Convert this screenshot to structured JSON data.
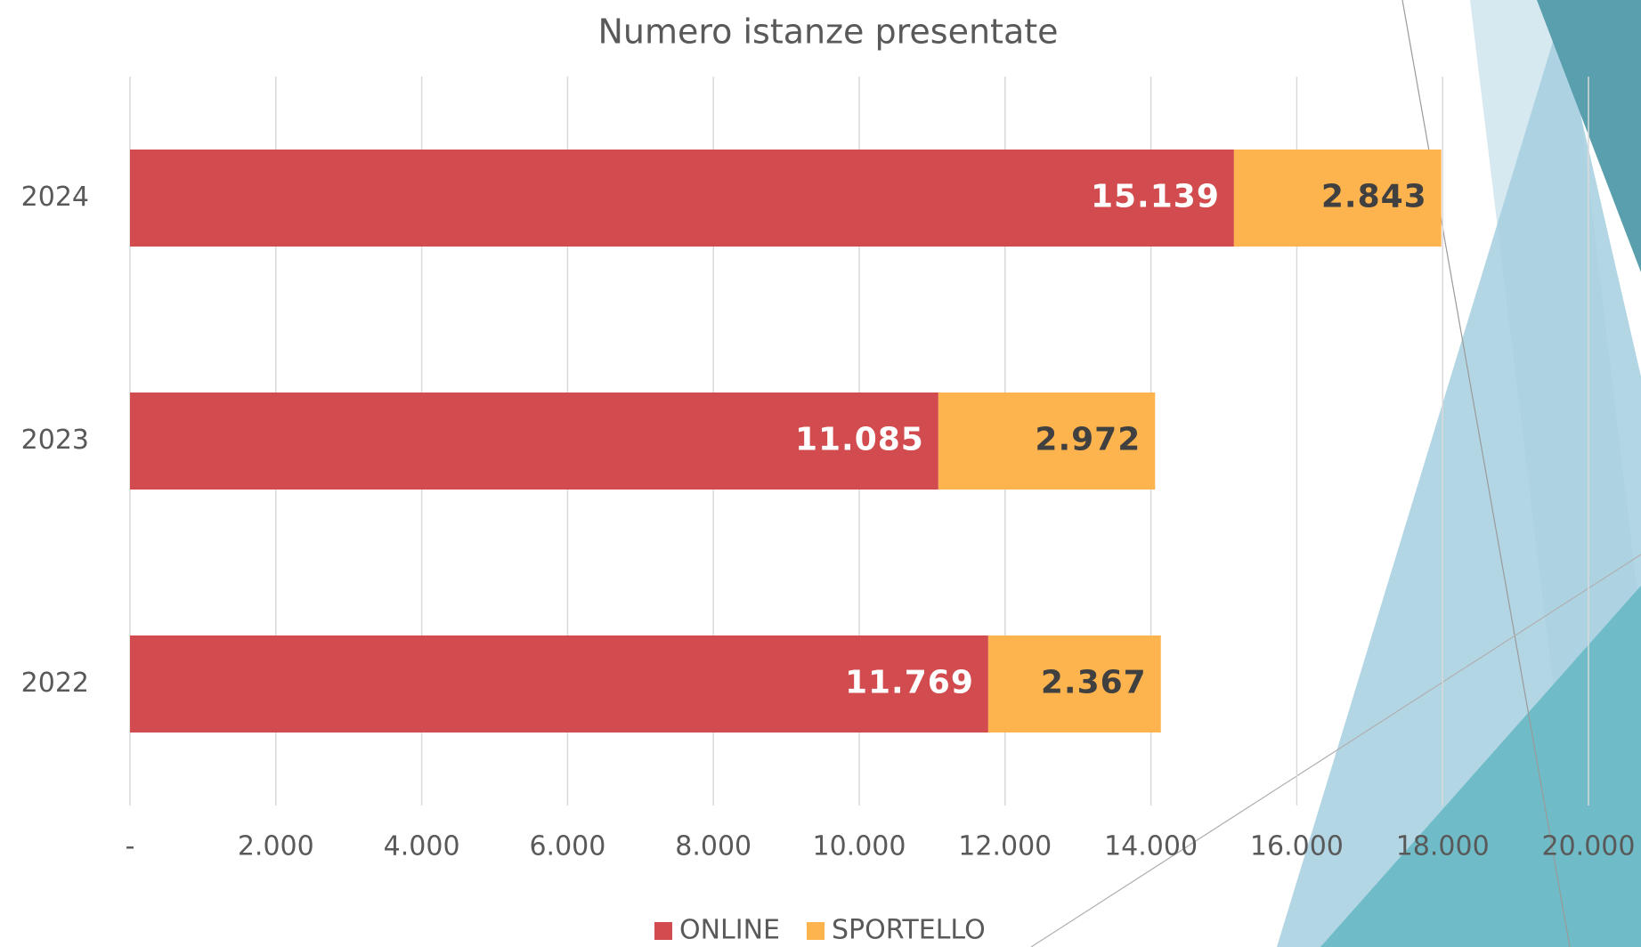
{
  "chart_data": {
    "type": "stacked-bar-horizontal",
    "title": "Numero istanze presentate",
    "categories": [
      "2024",
      "2023",
      "2022"
    ],
    "series": [
      {
        "name": "ONLINE",
        "color": "#d24b4e",
        "values": [
          15139,
          11085,
          11769
        ],
        "value_labels": [
          "15.139",
          "11.085",
          "11.769"
        ]
      },
      {
        "name": "SPORTELLO",
        "color": "#fdb44e",
        "values": [
          2843,
          2972,
          2367
        ],
        "value_labels": [
          "2.843",
          "2.972",
          "2.367"
        ]
      }
    ],
    "xlim": [
      0,
      20000
    ],
    "xticks": [
      {
        "value": 0,
        "label": "-"
      },
      {
        "value": 2000,
        "label": "2.000"
      },
      {
        "value": 4000,
        "label": "4.000"
      },
      {
        "value": 6000,
        "label": "6.000"
      },
      {
        "value": 8000,
        "label": "8.000"
      },
      {
        "value": 10000,
        "label": "10.000"
      },
      {
        "value": 12000,
        "label": "12.000"
      },
      {
        "value": 14000,
        "label": "14.000"
      },
      {
        "value": 16000,
        "label": "16.000"
      },
      {
        "value": 18000,
        "label": "18.000"
      },
      {
        "value": 20000,
        "label": "20.000"
      }
    ],
    "grid": true,
    "legend": "bottom"
  }
}
